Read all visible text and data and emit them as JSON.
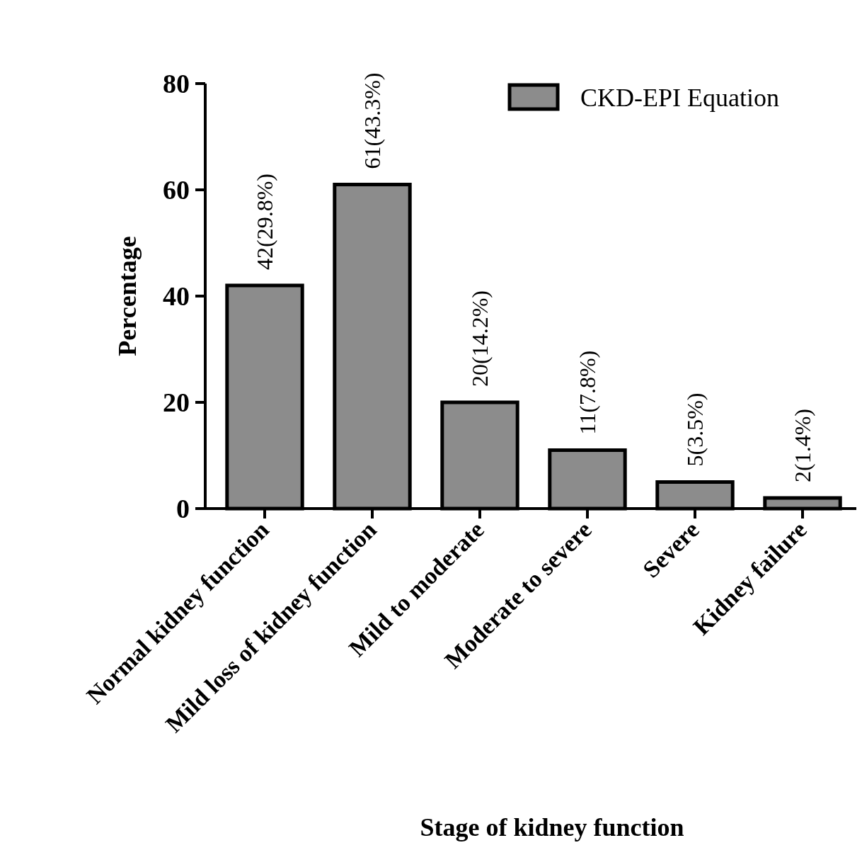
{
  "chart_data": {
    "type": "bar",
    "xlabel": "Stage of kidney function",
    "ylabel": "Percentage",
    "categories": [
      "Normal kidney function",
      "Mild loss of kidney function",
      "Mild to moderate",
      "Moderate to severe",
      "Severe",
      "Kidney failure"
    ],
    "series": [
      {
        "name": "CKD-EPI Equation",
        "color": "#8c8c8c",
        "values": [
          42,
          61,
          20,
          11,
          5,
          2
        ],
        "value_labels": [
          "42(29.8%)",
          "61(43.3%)",
          "20(14.2%)",
          "11(7.8%)",
          "5(3.5%)",
          "2(1.4%)"
        ]
      }
    ],
    "ylim": [
      0,
      80
    ],
    "yticks": [
      0,
      20,
      40,
      60,
      80
    ],
    "legend": "top right"
  }
}
